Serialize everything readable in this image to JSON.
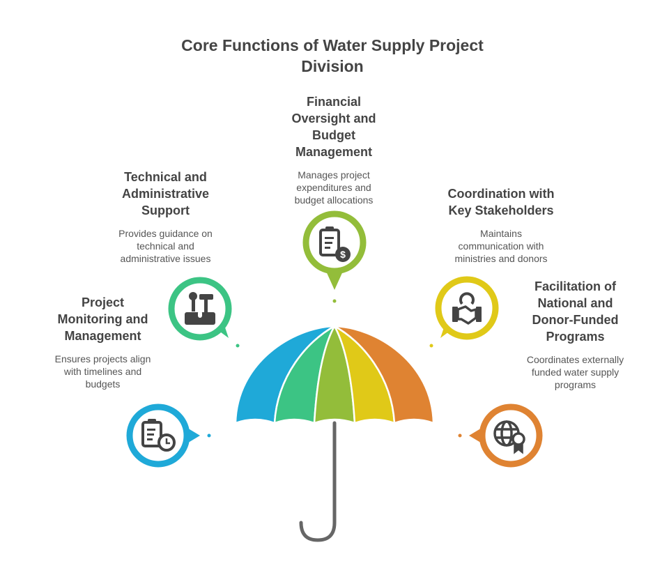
{
  "title": "Core Functions of  Water Supply Project Division",
  "title_lines": [
    "Core Functions of  Water Supply Project",
    "Division"
  ],
  "colors": {
    "blue": "#1fa9d8",
    "green": "#3cc484",
    "lime": "#93bd3a",
    "yellow": "#e0c918",
    "orange": "#df8332",
    "text": "#444444",
    "handle": "#666666"
  },
  "items": [
    {
      "heading_lines": [
        "Project",
        "Monitoring and",
        "Management"
      ],
      "description_lines": [
        "Ensures projects align",
        "with timelines and",
        "budgets"
      ],
      "icon": "clipboard-clock-icon",
      "color": "blue"
    },
    {
      "heading_lines": [
        "Technical and",
        "Administrative",
        "Support"
      ],
      "description_lines": [
        "Provides guidance on",
        "technical and",
        "administrative issues"
      ],
      "icon": "toolbox-icon",
      "color": "green"
    },
    {
      "heading_lines": [
        "Financial",
        "Oversight and",
        "Budget",
        "Management"
      ],
      "description_lines": [
        "Manages project",
        "expenditures and",
        "budget allocations"
      ],
      "icon": "clipboard-dollar-icon",
      "color": "lime"
    },
    {
      "heading_lines": [
        "Coordination with",
        "Key Stakeholders"
      ],
      "description_lines": [
        "Maintains",
        "communication with",
        "ministries and donors"
      ],
      "icon": "handshake-icon",
      "color": "yellow"
    },
    {
      "heading_lines": [
        "Facilitation of",
        "National and",
        "Donor-Funded",
        "Programs"
      ],
      "description_lines": [
        "Coordinates externally",
        "funded water supply",
        "programs"
      ],
      "icon": "globe-certificate-icon",
      "color": "orange"
    }
  ]
}
